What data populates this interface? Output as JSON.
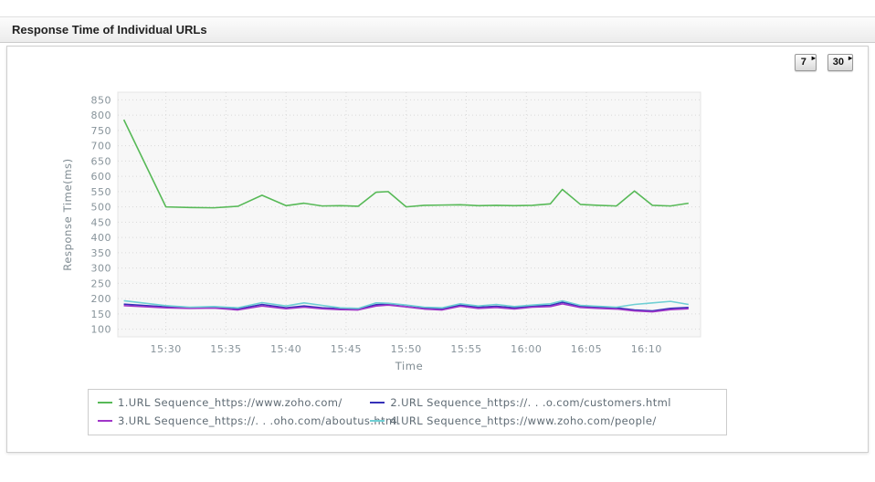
{
  "header": {
    "title": "Response Time of Individual URLs"
  },
  "toolbar": {
    "buttons": [
      {
        "label": "7"
      },
      {
        "label": "30"
      }
    ]
  },
  "chart_data": {
    "type": "line",
    "title": "",
    "xlabel": "Time",
    "ylabel": "Response Time(ms)",
    "grid": true,
    "legend_position": "bottom",
    "xlim": [
      26,
      74.5
    ],
    "ylim": [
      75,
      875
    ],
    "yticks": [
      100,
      150,
      200,
      250,
      300,
      350,
      400,
      450,
      500,
      550,
      600,
      650,
      700,
      750,
      800,
      850
    ],
    "x_ticks": [
      30,
      35,
      40,
      45,
      50,
      55,
      60,
      65,
      70
    ],
    "x_tick_labels": [
      "15:30",
      "15:35",
      "15:40",
      "15:45",
      "15:50",
      "15:55",
      "16:00",
      "16:05",
      "16:10"
    ],
    "x": [
      26.5,
      30,
      32,
      34,
      36,
      38,
      40,
      41.5,
      43,
      44.5,
      46,
      47.5,
      48.5,
      50,
      51.5,
      53,
      54.5,
      56,
      57.5,
      59,
      60.5,
      62,
      63,
      64.5,
      66,
      67.5,
      69,
      70.5,
      72,
      73.5
    ],
    "series": [
      {
        "name": "1.URL Sequence_https://www.zoho.com/",
        "color": "#57b957",
        "values": [
          785,
          500,
          498,
          497,
          502,
          538,
          504,
          512,
          503,
          504,
          502,
          548,
          550,
          500,
          505,
          506,
          507,
          504,
          505,
          504,
          505,
          510,
          557,
          508,
          505,
          503,
          552,
          505,
          503,
          512
        ]
      },
      {
        "name": "2.URL Sequence_https://. . .o.com/customers.html",
        "color": "#3531b8",
        "values": [
          182,
          173,
          170,
          171,
          166,
          181,
          170,
          176,
          170,
          167,
          166,
          180,
          183,
          178,
          170,
          167,
          179,
          172,
          175,
          170,
          176,
          178,
          188,
          175,
          172,
          170,
          163,
          160,
          168,
          171
        ]
      },
      {
        "name": "3.URL Sequence_https://. . .oho.com/aboutus.html",
        "color": "#a035c8",
        "values": [
          177,
          170,
          168,
          169,
          163,
          176,
          167,
          172,
          167,
          164,
          163,
          176,
          179,
          173,
          166,
          163,
          175,
          168,
          171,
          166,
          172,
          174,
          183,
          171,
          168,
          166,
          160,
          157,
          164,
          167
        ]
      },
      {
        "name": "4.URL Sequence_https://www.zoho.com/people/",
        "color": "#6fcfd4",
        "values": [
          193,
          177,
          172,
          174,
          170,
          187,
          176,
          186,
          178,
          170,
          168,
          186,
          185,
          179,
          172,
          170,
          183,
          176,
          181,
          174,
          179,
          183,
          193,
          178,
          175,
          172,
          181,
          186,
          191,
          181
        ]
      }
    ]
  }
}
